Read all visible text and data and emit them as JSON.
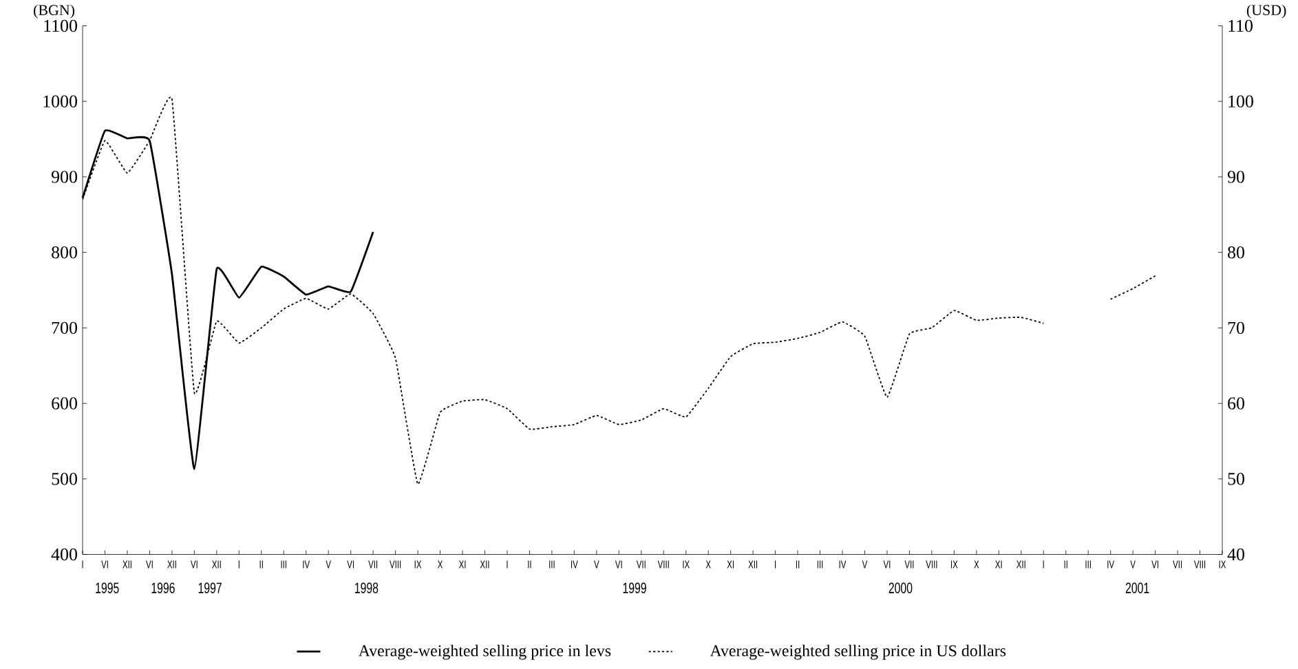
{
  "chart_data": {
    "type": "line",
    "categories": [
      "I",
      "VI",
      "XII",
      "VI",
      "XII",
      "VI",
      "XII",
      "I",
      "II",
      "III",
      "IV",
      "V",
      "VI",
      "VII",
      "VIII",
      "IX",
      "X",
      "XI",
      "XII",
      "I",
      "II",
      "III",
      "IV",
      "V",
      "VI",
      "VII",
      "VIII",
      "IX",
      "X",
      "XI",
      "XII",
      "I",
      "II",
      "III",
      "IV",
      "V",
      "VI",
      "VII",
      "VIII",
      "IX",
      "X",
      "XI",
      "XII",
      "I",
      "II",
      "III",
      "IV",
      "V",
      "VI",
      "VII",
      "VIII",
      "IX"
    ],
    "series": [
      {
        "name": "Average-weighted selling price in levs",
        "color": "#000000",
        "line_style": "solid",
        "values": [
          872,
          961,
          951,
          948,
          771,
          513,
          778,
          740,
          781,
          768,
          744,
          755,
          748,
          827,
          null,
          null,
          null,
          null,
          null,
          null,
          null,
          null,
          null,
          null,
          null,
          null,
          null,
          null,
          null,
          null,
          null,
          null,
          null,
          null,
          null,
          null,
          null,
          null,
          null,
          null,
          null,
          null,
          null,
          null,
          null,
          null,
          null,
          null,
          null,
          null,
          null,
          null
        ]
      },
      {
        "name": "Average-weighted selling price in US dollars",
        "color": "#000000",
        "line_style": "dotted",
        "axis": "y2",
        "values": [
          87,
          94.8,
          90.5,
          94.8,
          100.3,
          61.4,
          70.9,
          68,
          70,
          72.5,
          73.9,
          72.5,
          74.5,
          71.9,
          66,
          49.3,
          58.8,
          60.3,
          60.5,
          59.3,
          56.6,
          56.9,
          57.2,
          58.4,
          57.2,
          57.8,
          59.3,
          58.2,
          62,
          66.2,
          67.9,
          68.1,
          68.6,
          69.4,
          70.8,
          68.9,
          60.8,
          69.2,
          70,
          72.3,
          71,
          71.3,
          71.4,
          70.6,
          null,
          null,
          73.8,
          75.2,
          76.9,
          null,
          null,
          null
        ]
      }
    ],
    "ylabel": "(BGN)",
    "y2label": "(USD)",
    "ylim": [
      400,
      1100
    ],
    "yticks": [
      400,
      500,
      600,
      700,
      800,
      900,
      1000,
      1100
    ],
    "y2lim": [
      40,
      110
    ],
    "y2ticks": [
      40,
      50,
      60,
      70,
      80,
      90,
      100,
      110
    ],
    "annotations": [
      "1995",
      "1996",
      "1997",
      "1998",
      "1999",
      "2000",
      "2001"
    ],
    "grid": false,
    "legend": "bottom",
    "marker": "none"
  }
}
